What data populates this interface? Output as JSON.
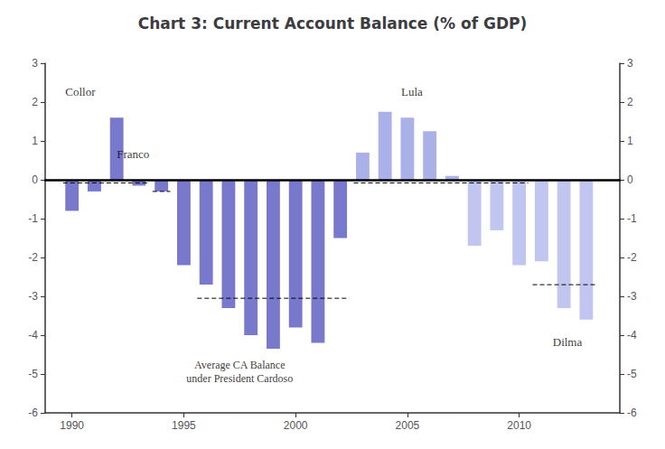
{
  "chart_data": {
    "type": "bar",
    "title": "Chart 3: Current Account Balance (% of GDP)",
    "x": [
      1990,
      1991,
      1992,
      1993,
      1994,
      1995,
      1996,
      1997,
      1998,
      1999,
      2000,
      2001,
      2002,
      2003,
      2004,
      2005,
      2006,
      2007,
      2008,
      2009,
      2010,
      2011,
      2012,
      2013
    ],
    "values": [
      -0.8,
      -0.3,
      1.6,
      -0.15,
      -0.3,
      -2.2,
      -2.7,
      -3.3,
      -4.0,
      -4.35,
      -3.8,
      -4.2,
      -1.5,
      0.7,
      1.75,
      1.6,
      1.25,
      0.1,
      -1.7,
      -1.3,
      -2.2,
      -2.1,
      -3.3,
      -3.6
    ],
    "colors": [
      "#7878cc",
      "#7878cc",
      "#7878cc",
      "#7878cc",
      "#7878cc",
      "#7878cc",
      "#7878cc",
      "#7878cc",
      "#7878cc",
      "#7878cc",
      "#7878cc",
      "#7878cc",
      "#7878cc",
      "#aab0e8",
      "#aab0e8",
      "#aab0e8",
      "#aab0e8",
      "#aab0e8",
      "#c0c6f0",
      "#c0c6f0",
      "#c0c6f0",
      "#c0c6f0",
      "#c0c6f0",
      "#c0c6f0"
    ],
    "xlim": [
      1988.8,
      2014.5
    ],
    "xticks": [
      1990,
      1995,
      2000,
      2005,
      2010
    ],
    "ylim": [
      -6,
      3
    ],
    "yticks": [
      -6,
      -5,
      -4,
      -3,
      -2,
      -1,
      0,
      1,
      2,
      3
    ],
    "y2lim": [
      -6,
      3
    ],
    "y2ticks": [
      -6,
      -5,
      -4,
      -3,
      -2,
      -1,
      0,
      1,
      2,
      3
    ],
    "grid": false,
    "averages": [
      {
        "y": -0.08,
        "x_start": 1989.6,
        "x_end": 1993.4
      },
      {
        "y": -0.3,
        "x_start": 1993.6,
        "x_end": 1994.4
      },
      {
        "y": -3.05,
        "x_start": 1995.6,
        "x_end": 2002.4
      },
      {
        "y": -0.08,
        "x_start": 2002.6,
        "x_end": 2010.4
      },
      {
        "y": -2.7,
        "x_start": 2010.6,
        "x_end": 2013.4
      }
    ],
    "annotations": [
      {
        "text": "Collor",
        "x": 1989.7,
        "y": 2.1
      },
      {
        "text": "Franco",
        "x": 1992.0,
        "y": 0.5
      },
      {
        "text": "Lula",
        "x": 2005.2,
        "y": 2.1
      },
      {
        "text": "Dilma",
        "x": 2011.5,
        "y": -4.0
      },
      {
        "text": "Average CA Balance\nunder President Cardoso",
        "x": 1997.5,
        "y": -4.6
      }
    ]
  }
}
